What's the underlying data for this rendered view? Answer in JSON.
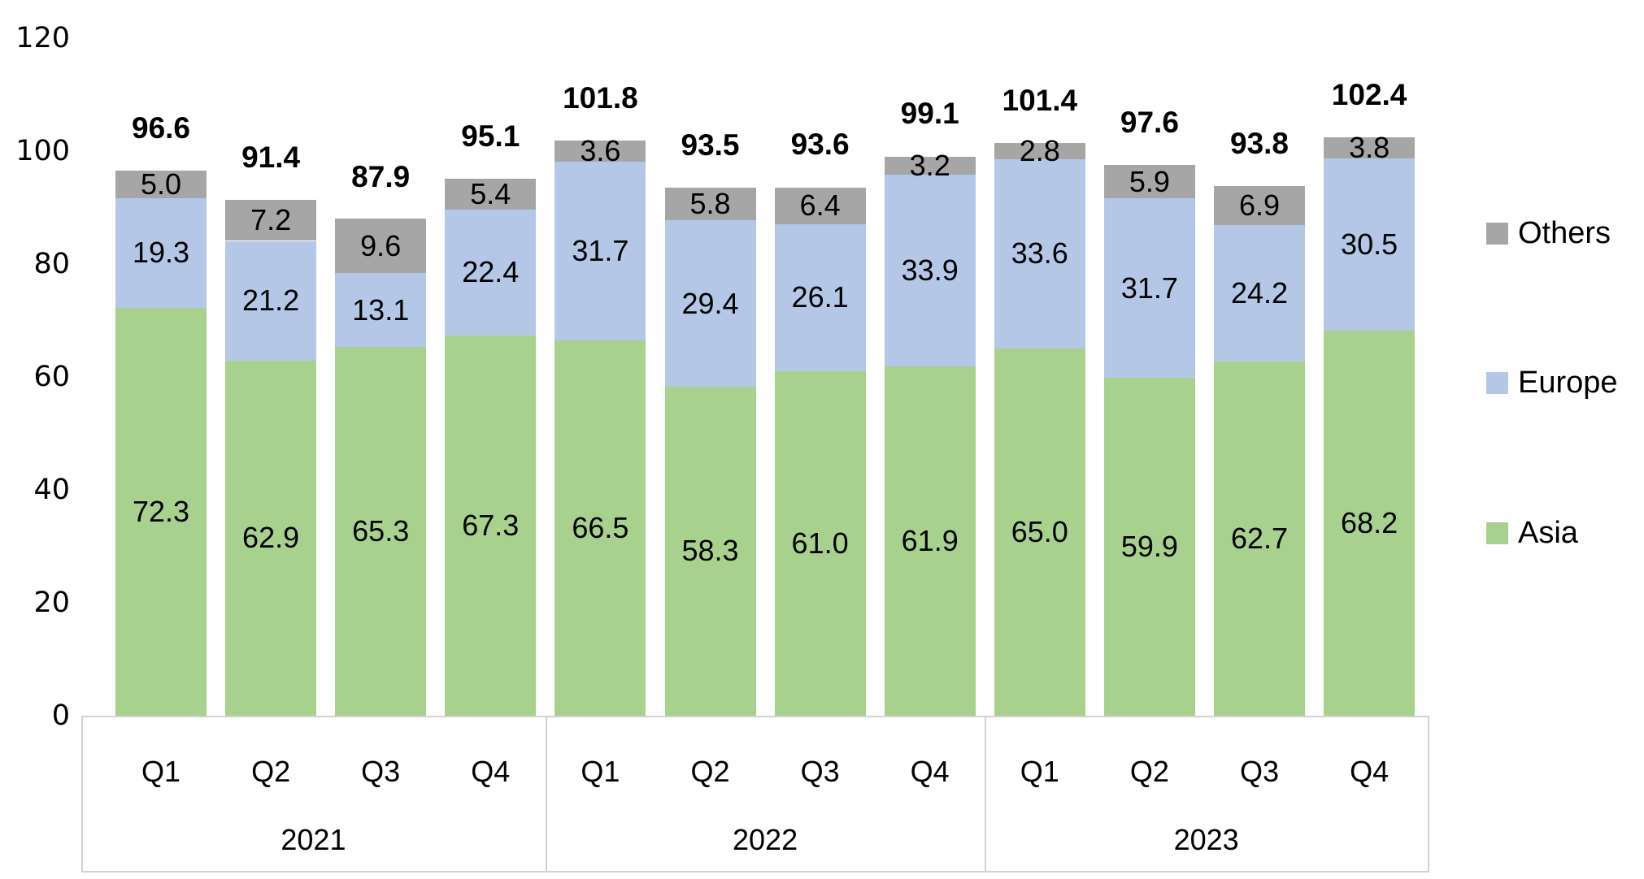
{
  "chart_data": {
    "type": "bar",
    "stacked": true,
    "title": "",
    "xlabel": "",
    "ylabel": "",
    "ylim": [
      0,
      120
    ],
    "yticks": [
      0,
      20,
      40,
      60,
      80,
      100,
      120
    ],
    "grid": false,
    "legend_position": "right",
    "legend_order_top_to_bottom": [
      "Others",
      "Europe",
      "Asia"
    ],
    "categories": [
      "Q1",
      "Q2",
      "Q3",
      "Q4",
      "Q1",
      "Q2",
      "Q3",
      "Q4",
      "Q1",
      "Q2",
      "Q3",
      "Q4"
    ],
    "year_groups": [
      {
        "label": "2021",
        "span": 4
      },
      {
        "label": "2022",
        "span": 4
      },
      {
        "label": "2023",
        "span": 4
      }
    ],
    "series": [
      {
        "name": "Asia",
        "color": "#A9D18E",
        "values": [
          72.3,
          62.9,
          65.3,
          67.3,
          66.5,
          58.3,
          61.0,
          61.9,
          65.0,
          59.9,
          62.7,
          68.2
        ]
      },
      {
        "name": "Europe",
        "color": "#B4C7E7",
        "values": [
          19.3,
          21.2,
          13.1,
          22.4,
          31.7,
          29.4,
          26.1,
          33.9,
          33.6,
          31.7,
          24.2,
          30.5
        ]
      },
      {
        "name": "Others",
        "color": "#A6A6A6",
        "values": [
          5.0,
          7.2,
          9.6,
          5.4,
          3.6,
          5.8,
          6.4,
          3.2,
          2.8,
          5.9,
          6.9,
          3.8
        ]
      }
    ],
    "totals": [
      96.6,
      91.4,
      87.9,
      95.1,
      101.8,
      93.5,
      93.6,
      99.1,
      101.4,
      97.6,
      93.8,
      102.4
    ],
    "colors": {
      "asia": "#A9D18E",
      "europe": "#B4C7E7",
      "others": "#A6A6A6",
      "axis_border": "#d2d2d2",
      "text": "#000000"
    }
  }
}
